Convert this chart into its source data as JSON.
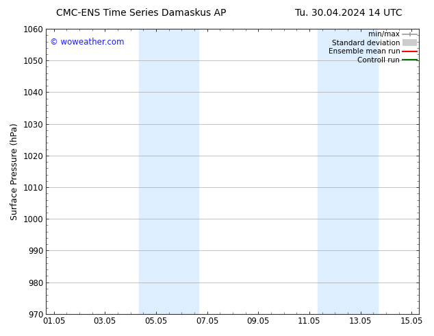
{
  "title_left": "CMC-ENS Time Series Damaskus AP",
  "title_right": "Tu. 30.04.2024 14 UTC",
  "ylabel": "Surface Pressure (hPa)",
  "xlabel": "",
  "ylim": [
    970,
    1060
  ],
  "yticks": [
    970,
    980,
    990,
    1000,
    1010,
    1020,
    1030,
    1040,
    1050,
    1060
  ],
  "xtick_labels": [
    "01.05",
    "03.05",
    "05.05",
    "07.05",
    "09.05",
    "11.05",
    "13.05",
    "15.05"
  ],
  "xtick_positions": [
    0,
    2,
    4,
    6,
    8,
    10,
    12,
    14
  ],
  "xlim": [
    -0.3,
    14.3
  ],
  "watermark": "© woweather.com",
  "watermark_color": "#1a1aff",
  "background_color": "#ffffff",
  "plot_bg_color": "#ffffff",
  "shaded_regions": [
    {
      "x_start": 3.33,
      "x_end": 5.67,
      "color": "#ddeeff"
    },
    {
      "x_start": 10.33,
      "x_end": 12.67,
      "color": "#ddeeff"
    }
  ],
  "legend_entries": [
    {
      "label": "min/max",
      "color": "#999999",
      "lw": 1.2
    },
    {
      "label": "Standard deviation",
      "color": "#cccccc",
      "lw": 6
    },
    {
      "label": "Ensemble mean run",
      "color": "#ff0000",
      "lw": 1.5
    },
    {
      "label": "Controll run",
      "color": "#007700",
      "lw": 1.5
    }
  ],
  "title_fontsize": 10,
  "tick_fontsize": 8.5,
  "ylabel_fontsize": 9,
  "legend_fontsize": 7.5
}
